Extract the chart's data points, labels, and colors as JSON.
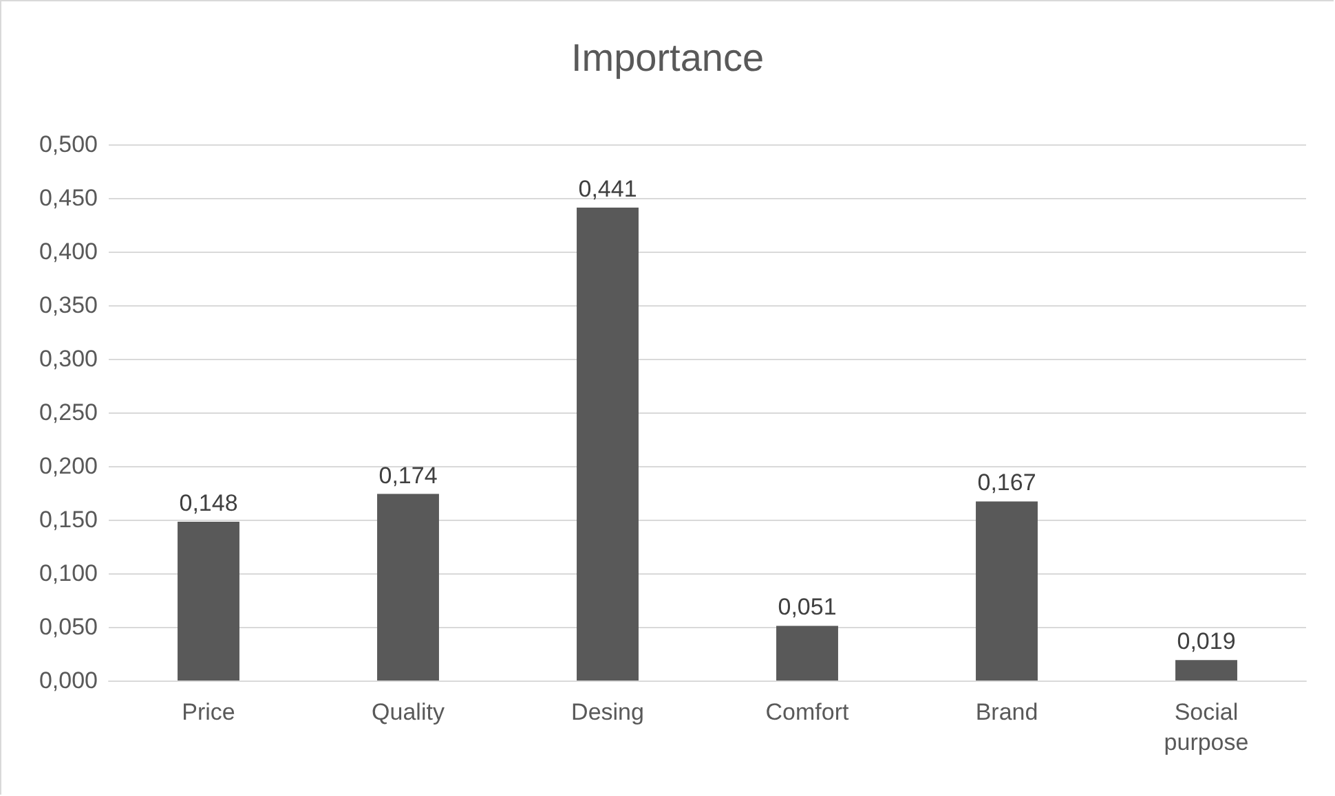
{
  "chart_data": {
    "type": "bar",
    "title": "Importance",
    "categories": [
      "Price",
      "Quality",
      "Desing",
      "Comfort",
      "Brand",
      "Social\npurpose"
    ],
    "values": [
      0.148,
      0.174,
      0.441,
      0.051,
      0.167,
      0.019
    ],
    "value_labels": [
      "0,148",
      "0,174",
      "0,441",
      "0,051",
      "0,167",
      "0,019"
    ],
    "color": "#595959",
    "ylim": [
      0,
      0.5
    ],
    "yticks": [
      {
        "value": 0,
        "label": "0,000"
      },
      {
        "value": 0.05,
        "label": "0,050"
      },
      {
        "value": 0.1,
        "label": "0,100"
      },
      {
        "value": 0.15,
        "label": "0,150"
      },
      {
        "value": 0.2,
        "label": "0,200"
      },
      {
        "value": 0.25,
        "label": "0,250"
      },
      {
        "value": 0.3,
        "label": "0,300"
      },
      {
        "value": 0.35,
        "label": "0,350"
      },
      {
        "value": 0.4,
        "label": "0,400"
      },
      {
        "value": 0.45,
        "label": "0,450"
      },
      {
        "value": 0.5,
        "label": "0,500"
      }
    ],
    "grid": "y"
  }
}
